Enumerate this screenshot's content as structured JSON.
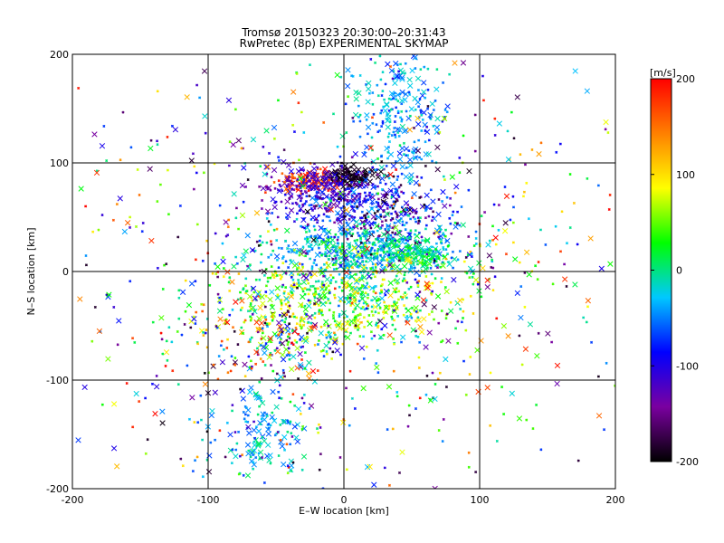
{
  "chart_data": {
    "type": "scatter",
    "title": "Tromsø 20150323 20:30:00–20:31:43",
    "subtitle": "RwPretec (8p) EXPERIMENTAL SKYMAP",
    "xlabel": "E–W location [km]",
    "ylabel": "N–S location [km]",
    "xlim": [
      -200,
      200
    ],
    "ylim": [
      -200,
      200
    ],
    "xticks": [
      -200,
      -100,
      0,
      100,
      200
    ],
    "yticks": [
      -200,
      -100,
      0,
      100,
      200
    ],
    "grid": true,
    "colorbar": {
      "label": "[m/s]",
      "range": [
        -200,
        200
      ],
      "ticks": [
        200,
        100,
        0,
        -100,
        -200
      ],
      "colormap": "rainbow",
      "stops": [
        "#000000",
        "#7a00a0",
        "#0000ff",
        "#00c8ff",
        "#00ff00",
        "#ffff00",
        "#ff8000",
        "#ff0000"
      ]
    },
    "markers": {
      "small": "dot",
      "large": "cross"
    },
    "clusters": [
      {
        "cx": 5,
        "cy": 88,
        "sx": 9,
        "sy": 4,
        "n": 120,
        "vmin": -200,
        "vmax": -180,
        "big": 0.6
      },
      {
        "cx": -28,
        "cy": 82,
        "sx": 10,
        "sy": 6,
        "n": 90,
        "vmin": 150,
        "vmax": 200,
        "big": 0.4
      },
      {
        "cx": -15,
        "cy": 75,
        "sx": 22,
        "sy": 12,
        "n": 240,
        "vmin": -150,
        "vmax": -90,
        "big": 0.3
      },
      {
        "cx": 15,
        "cy": 58,
        "sx": 30,
        "sy": 15,
        "n": 220,
        "vmin": -110,
        "vmax": -40,
        "big": 0.25
      },
      {
        "cx": 30,
        "cy": 50,
        "sx": 22,
        "sy": 14,
        "n": 120,
        "vmin": -200,
        "vmax": -120,
        "big": 0.2
      },
      {
        "cx": 20,
        "cy": 20,
        "sx": 35,
        "sy": 12,
        "n": 520,
        "vmin": -70,
        "vmax": 20,
        "big": 0.2
      },
      {
        "cx": 55,
        "cy": 15,
        "sx": 10,
        "sy": 5,
        "n": 100,
        "vmin": -20,
        "vmax": 30,
        "big": 0.3
      },
      {
        "cx": 0,
        "cy": -25,
        "sx": 45,
        "sy": 22,
        "n": 560,
        "vmin": -30,
        "vmax": 110,
        "big": 0.25
      },
      {
        "cx": 40,
        "cy": 150,
        "sx": 18,
        "sy": 35,
        "n": 260,
        "vmin": -80,
        "vmax": 0,
        "big": 0.4
      },
      {
        "cx": -60,
        "cy": -150,
        "sx": 20,
        "sy": 25,
        "n": 140,
        "vmin": -70,
        "vmax": 10,
        "big": 0.4
      },
      {
        "cx": -50,
        "cy": -60,
        "sx": 25,
        "sy": 20,
        "n": 180,
        "vmin": -200,
        "vmax": 200,
        "big": 0.3
      },
      {
        "cx": 0,
        "cy": 0,
        "sx": 120,
        "sy": 110,
        "n": 950,
        "vmin": -200,
        "vmax": 200,
        "big": 0.3
      }
    ]
  }
}
